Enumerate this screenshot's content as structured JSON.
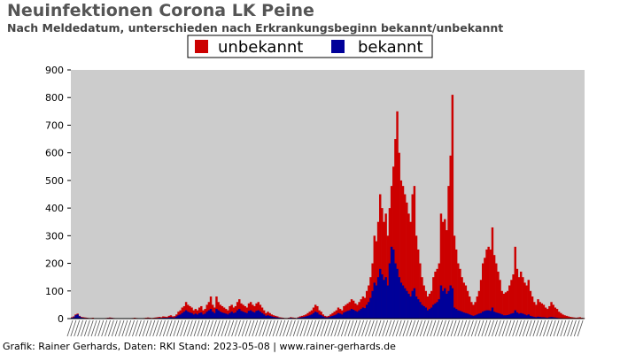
{
  "chart_data": {
    "type": "bar",
    "stacked": true,
    "title": "Neuinfektionen Corona LK Peine",
    "subtitle": "Nach Meldedatum, unterschieden nach Erkrankungsbeginn bekannt/unbekannt",
    "ylim": [
      0,
      900
    ],
    "yticks": [
      0,
      100,
      200,
      300,
      400,
      500,
      600,
      700,
      800,
      900
    ],
    "grid": false,
    "legend_position": "top-center",
    "x_tick_labels": "dense date labels, unreadable",
    "series": [
      {
        "name": "unbekannt",
        "color": "#cc0000",
        "values": [
          5,
          8,
          15,
          18,
          10,
          6,
          5,
          4,
          3,
          2,
          2,
          3,
          1,
          0,
          0,
          1,
          0,
          0,
          2,
          3,
          4,
          3,
          2,
          1,
          0,
          0,
          0,
          0,
          0,
          1,
          0,
          1,
          2,
          3,
          2,
          1,
          1,
          1,
          2,
          3,
          4,
          3,
          2,
          3,
          4,
          5,
          6,
          5,
          8,
          7,
          6,
          10,
          12,
          8,
          9,
          15,
          25,
          30,
          40,
          45,
          60,
          50,
          45,
          40,
          30,
          35,
          30,
          40,
          45,
          30,
          35,
          50,
          60,
          80,
          50,
          40,
          80,
          60,
          50,
          45,
          40,
          35,
          30,
          45,
          50,
          40,
          45,
          60,
          70,
          55,
          50,
          45,
          40,
          55,
          60,
          50,
          45,
          55,
          60,
          50,
          40,
          30,
          20,
          25,
          20,
          15,
          12,
          10,
          8,
          5,
          4,
          3,
          2,
          2,
          3,
          5,
          4,
          3,
          2,
          5,
          8,
          10,
          12,
          15,
          20,
          25,
          30,
          40,
          50,
          45,
          30,
          25,
          15,
          10,
          8,
          10,
          15,
          20,
          25,
          30,
          40,
          35,
          30,
          45,
          50,
          55,
          60,
          70,
          65,
          55,
          50,
          60,
          70,
          80,
          75,
          100,
          120,
          150,
          200,
          300,
          280,
          350,
          450,
          400,
          350,
          380,
          300,
          400,
          480,
          550,
          650,
          750,
          600,
          500,
          480,
          450,
          420,
          380,
          350,
          450,
          480,
          300,
          250,
          200,
          150,
          120,
          100,
          80,
          90,
          100,
          150,
          170,
          180,
          200,
          380,
          350,
          360,
          320,
          480,
          590,
          810,
          300,
          250,
          200,
          180,
          150,
          130,
          120,
          100,
          80,
          60,
          50,
          60,
          80,
          100,
          140,
          200,
          220,
          250,
          260,
          250,
          330,
          230,
          200,
          170,
          140,
          100,
          90,
          95,
          100,
          120,
          140,
          160,
          260,
          180,
          150,
          170,
          150,
          130,
          120,
          140,
          100,
          80,
          60,
          50,
          70,
          60,
          55,
          50,
          40,
          35,
          45,
          60,
          50,
          40,
          35,
          25,
          20,
          15,
          12,
          10,
          8,
          6,
          5,
          4,
          3,
          4,
          5,
          3,
          2
        ]
      },
      {
        "name": "bekannt",
        "color": "#000099",
        "values": [
          3,
          5,
          12,
          15,
          8,
          4,
          3,
          2,
          2,
          1,
          1,
          1,
          0,
          0,
          0,
          0,
          0,
          0,
          1,
          2,
          2,
          2,
          1,
          0,
          0,
          0,
          0,
          0,
          0,
          0,
          0,
          0,
          1,
          1,
          1,
          0,
          0,
          0,
          1,
          1,
          2,
          1,
          1,
          1,
          2,
          2,
          3,
          2,
          3,
          3,
          3,
          4,
          5,
          4,
          4,
          8,
          12,
          15,
          20,
          25,
          30,
          25,
          22,
          20,
          15,
          18,
          15,
          20,
          22,
          15,
          18,
          25,
          30,
          35,
          25,
          20,
          35,
          30,
          25,
          22,
          20,
          18,
          15,
          20,
          25,
          20,
          22,
          30,
          35,
          28,
          25,
          22,
          20,
          28,
          30,
          25,
          22,
          28,
          30,
          25,
          20,
          15,
          10,
          12,
          10,
          8,
          6,
          5,
          4,
          3,
          2,
          2,
          1,
          1,
          2,
          3,
          2,
          2,
          1,
          3,
          4,
          5,
          6,
          8,
          10,
          12,
          15,
          20,
          25,
          22,
          15,
          12,
          8,
          5,
          4,
          5,
          8,
          10,
          12,
          15,
          20,
          18,
          15,
          22,
          25,
          28,
          30,
          35,
          32,
          28,
          25,
          30,
          35,
          40,
          38,
          50,
          60,
          75,
          100,
          130,
          120,
          150,
          180,
          160,
          140,
          150,
          120,
          200,
          260,
          250,
          200,
          180,
          150,
          130,
          120,
          110,
          100,
          90,
          80,
          100,
          110,
          80,
          70,
          60,
          50,
          45,
          40,
          30,
          35,
          40,
          50,
          55,
          60,
          70,
          120,
          100,
          110,
          90,
          100,
          120,
          110,
          40,
          35,
          30,
          28,
          25,
          22,
          20,
          18,
          15,
          12,
          10,
          12,
          15,
          18,
          20,
          25,
          28,
          30,
          30,
          28,
          40,
          25,
          22,
          20,
          18,
          15,
          12,
          12,
          13,
          15,
          18,
          20,
          30,
          22,
          18,
          20,
          18,
          15,
          12,
          15,
          10,
          8,
          6,
          5,
          7,
          6,
          5,
          5,
          4,
          3,
          5,
          6,
          5,
          4,
          3,
          2,
          2,
          1,
          1,
          1,
          1,
          1,
          0,
          0,
          1,
          1,
          0,
          0
        ]
      }
    ],
    "legend": [
      "unbekannt",
      "bekannt"
    ],
    "credit": "Grafik: Rainer Gerhards, Daten: RKI Stand: 2023-05-08 | www.rainer-gerhards.de"
  },
  "colors": {
    "plot_bg": "#cccccc",
    "page_bg": "#ffffff",
    "unbekannt": "#cc0000",
    "bekannt": "#000099"
  }
}
